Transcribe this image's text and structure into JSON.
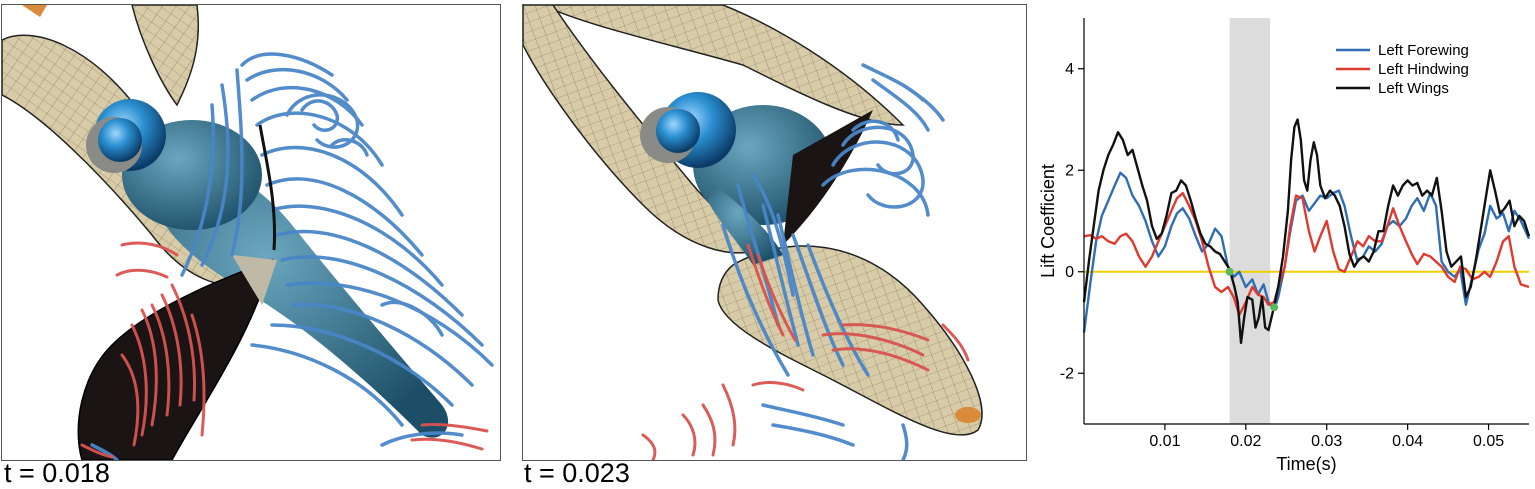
{
  "panels": [
    {
      "label": "t = 0.018"
    },
    {
      "label": "t = 0.023"
    }
  ],
  "colors": {
    "vortex_blue": "#4a86c8",
    "vortex_red": "#d9534f",
    "wing_fill": "#d8cca8",
    "wing_dark": "#1a1414",
    "body": "#2e6f8e",
    "eye": "#2a8fd0",
    "highlight_band": "#dcdcdc",
    "zero_line": "#f0d000"
  },
  "chart_data": {
    "type": "line",
    "title": "",
    "xlabel": "Time(s)",
    "ylabel": "Lift Coefficient",
    "xlim": [
      0.0,
      0.055
    ],
    "ylim": [
      -3,
      5
    ],
    "xticks": [
      0.01,
      0.02,
      0.03,
      0.04,
      0.05
    ],
    "xtick_labels": [
      "0.01",
      "0.02",
      "0.03",
      "0.04",
      "0.05"
    ],
    "yticks": [
      -2,
      0,
      2,
      4
    ],
    "ytick_labels": [
      "-2",
      "0",
      "2",
      "4"
    ],
    "highlight_x": [
      0.018,
      0.023
    ],
    "reference_line_y": 0,
    "markers": [
      [
        0.018,
        0.0
      ],
      [
        0.0235,
        -0.7
      ]
    ],
    "legend_position": "top-right",
    "grid": false,
    "series": [
      {
        "name": "Left Forewing",
        "color": "#2f6db5",
        "points": [
          [
            0.0,
            -1.2
          ],
          [
            0.0008,
            -0.2
          ],
          [
            0.0015,
            0.6
          ],
          [
            0.0022,
            1.1
          ],
          [
            0.003,
            1.4
          ],
          [
            0.0038,
            1.7
          ],
          [
            0.0045,
            1.95
          ],
          [
            0.0052,
            1.85
          ],
          [
            0.006,
            1.5
          ],
          [
            0.0068,
            1.3
          ],
          [
            0.0076,
            1.0
          ],
          [
            0.0084,
            0.6
          ],
          [
            0.0092,
            0.3
          ],
          [
            0.01,
            0.5
          ],
          [
            0.0108,
            0.9
          ],
          [
            0.0115,
            1.15
          ],
          [
            0.0122,
            1.25
          ],
          [
            0.013,
            1.05
          ],
          [
            0.0138,
            0.7
          ],
          [
            0.0146,
            0.4
          ],
          [
            0.0154,
            0.55
          ],
          [
            0.0162,
            0.85
          ],
          [
            0.017,
            0.7
          ],
          [
            0.0178,
            0.1
          ],
          [
            0.0185,
            -0.1
          ],
          [
            0.0192,
            0.0
          ],
          [
            0.02,
            -0.3
          ],
          [
            0.0208,
            -0.15
          ],
          [
            0.0215,
            -0.45
          ],
          [
            0.0222,
            -0.25
          ],
          [
            0.0228,
            -0.6
          ],
          [
            0.0235,
            -0.75
          ],
          [
            0.024,
            -0.5
          ],
          [
            0.0248,
            0.1
          ],
          [
            0.0255,
            0.8
          ],
          [
            0.0262,
            1.4
          ],
          [
            0.027,
            1.5
          ],
          [
            0.0278,
            1.2
          ],
          [
            0.0285,
            1.35
          ],
          [
            0.0292,
            1.5
          ],
          [
            0.03,
            1.45
          ],
          [
            0.0308,
            1.55
          ],
          [
            0.0315,
            1.6
          ],
          [
            0.0322,
            1.3
          ],
          [
            0.033,
            0.7
          ],
          [
            0.0338,
            0.2
          ],
          [
            0.0345,
            0.3
          ],
          [
            0.0352,
            0.5
          ],
          [
            0.036,
            0.4
          ],
          [
            0.0368,
            0.55
          ],
          [
            0.0375,
            0.9
          ],
          [
            0.0382,
            1.0
          ],
          [
            0.039,
            0.9
          ],
          [
            0.0398,
            1.05
          ],
          [
            0.0405,
            1.3
          ],
          [
            0.0412,
            1.45
          ],
          [
            0.042,
            1.2
          ],
          [
            0.0428,
            1.55
          ],
          [
            0.0435,
            1.3
          ],
          [
            0.0442,
            0.2
          ],
          [
            0.045,
            0.0
          ],
          [
            0.0458,
            -0.1
          ],
          [
            0.0465,
            0.05
          ],
          [
            0.0472,
            -0.65
          ],
          [
            0.048,
            -0.1
          ],
          [
            0.0488,
            0.45
          ],
          [
            0.0495,
            0.75
          ],
          [
            0.0502,
            1.3
          ],
          [
            0.051,
            1.05
          ],
          [
            0.0518,
            1.15
          ],
          [
            0.0525,
            0.8
          ],
          [
            0.0532,
            1.2
          ],
          [
            0.054,
            1.0
          ],
          [
            0.055,
            0.65
          ]
        ]
      },
      {
        "name": "Left Hindwing",
        "color": "#e03a2f",
        "points": [
          [
            0.0,
            0.7
          ],
          [
            0.0008,
            0.72
          ],
          [
            0.0015,
            0.65
          ],
          [
            0.0022,
            0.7
          ],
          [
            0.003,
            0.6
          ],
          [
            0.0038,
            0.55
          ],
          [
            0.0045,
            0.7
          ],
          [
            0.0052,
            0.75
          ],
          [
            0.006,
            0.6
          ],
          [
            0.0068,
            0.3
          ],
          [
            0.0076,
            0.1
          ],
          [
            0.0084,
            0.3
          ],
          [
            0.0092,
            0.6
          ],
          [
            0.01,
            0.9
          ],
          [
            0.0108,
            1.2
          ],
          [
            0.0115,
            1.45
          ],
          [
            0.0122,
            1.55
          ],
          [
            0.013,
            1.3
          ],
          [
            0.0138,
            1.0
          ],
          [
            0.0146,
            0.6
          ],
          [
            0.0154,
            0.1
          ],
          [
            0.0162,
            -0.3
          ],
          [
            0.017,
            -0.4
          ],
          [
            0.0178,
            -0.3
          ],
          [
            0.0185,
            -0.5
          ],
          [
            0.0192,
            -0.85
          ],
          [
            0.02,
            -0.6
          ],
          [
            0.0208,
            -0.3
          ],
          [
            0.0215,
            -0.45
          ],
          [
            0.0222,
            -0.5
          ],
          [
            0.0228,
            -0.65
          ],
          [
            0.0235,
            -0.6
          ],
          [
            0.024,
            -0.3
          ],
          [
            0.0248,
            0.1
          ],
          [
            0.0255,
            0.9
          ],
          [
            0.0262,
            1.5
          ],
          [
            0.027,
            1.45
          ],
          [
            0.0278,
            0.8
          ],
          [
            0.0285,
            0.4
          ],
          [
            0.0292,
            0.7
          ],
          [
            0.03,
            1.0
          ],
          [
            0.0308,
            0.4
          ],
          [
            0.0315,
            0.05
          ],
          [
            0.0322,
            0.0
          ],
          [
            0.033,
            0.3
          ],
          [
            0.0338,
            0.6
          ],
          [
            0.0345,
            0.5
          ],
          [
            0.0352,
            0.7
          ],
          [
            0.036,
            0.6
          ],
          [
            0.0368,
            0.6
          ],
          [
            0.0375,
            0.9
          ],
          [
            0.0382,
            1.25
          ],
          [
            0.039,
            0.9
          ],
          [
            0.0398,
            0.6
          ],
          [
            0.0405,
            0.35
          ],
          [
            0.0412,
            0.15
          ],
          [
            0.042,
            0.35
          ],
          [
            0.0428,
            0.3
          ],
          [
            0.0435,
            0.2
          ],
          [
            0.0442,
            0.1
          ],
          [
            0.045,
            -0.1
          ],
          [
            0.0458,
            -0.2
          ],
          [
            0.0465,
            0.1
          ],
          [
            0.0472,
            0.05
          ],
          [
            0.048,
            -0.15
          ],
          [
            0.0488,
            -0.1
          ],
          [
            0.0495,
            0.0
          ],
          [
            0.0502,
            -0.1
          ],
          [
            0.051,
            0.2
          ],
          [
            0.0518,
            0.6
          ],
          [
            0.0525,
            0.7
          ],
          [
            0.0532,
            0.1
          ],
          [
            0.054,
            -0.25
          ],
          [
            0.055,
            -0.3
          ]
        ]
      },
      {
        "name": "Left Wings",
        "color": "#111111",
        "points": [
          [
            0.0,
            -0.6
          ],
          [
            0.0006,
            0.2
          ],
          [
            0.0012,
            0.9
          ],
          [
            0.0018,
            1.6
          ],
          [
            0.0024,
            2.0
          ],
          [
            0.003,
            2.3
          ],
          [
            0.0036,
            2.5
          ],
          [
            0.0042,
            2.75
          ],
          [
            0.0048,
            2.6
          ],
          [
            0.0054,
            2.3
          ],
          [
            0.006,
            2.4
          ],
          [
            0.0066,
            2.05
          ],
          [
            0.0072,
            1.7
          ],
          [
            0.0078,
            1.4
          ],
          [
            0.0084,
            0.9
          ],
          [
            0.009,
            0.65
          ],
          [
            0.0096,
            0.75
          ],
          [
            0.0102,
            1.1
          ],
          [
            0.0108,
            1.55
          ],
          [
            0.0114,
            1.6
          ],
          [
            0.012,
            1.8
          ],
          [
            0.0126,
            1.7
          ],
          [
            0.0132,
            1.4
          ],
          [
            0.0138,
            1.05
          ],
          [
            0.0144,
            0.75
          ],
          [
            0.015,
            0.55
          ],
          [
            0.0156,
            0.5
          ],
          [
            0.0162,
            0.4
          ],
          [
            0.0168,
            0.35
          ],
          [
            0.0174,
            0.2
          ],
          [
            0.018,
            0.05
          ],
          [
            0.0186,
            -0.3
          ],
          [
            0.019,
            -0.6
          ],
          [
            0.0194,
            -1.4
          ],
          [
            0.0198,
            -0.9
          ],
          [
            0.0202,
            -0.5
          ],
          [
            0.0208,
            -0.55
          ],
          [
            0.0212,
            -1.1
          ],
          [
            0.0216,
            -0.9
          ],
          [
            0.022,
            -0.5
          ],
          [
            0.0224,
            -1.1
          ],
          [
            0.0228,
            -1.15
          ],
          [
            0.0234,
            -0.75
          ],
          [
            0.024,
            -0.3
          ],
          [
            0.0246,
            0.3
          ],
          [
            0.0252,
            1.2
          ],
          [
            0.0256,
            2.2
          ],
          [
            0.026,
            2.85
          ],
          [
            0.0264,
            3.0
          ],
          [
            0.0268,
            2.6
          ],
          [
            0.0272,
            1.8
          ],
          [
            0.0276,
            1.6
          ],
          [
            0.028,
            2.2
          ],
          [
            0.0284,
            2.55
          ],
          [
            0.0288,
            2.3
          ],
          [
            0.0292,
            1.7
          ],
          [
            0.0298,
            1.45
          ],
          [
            0.0304,
            1.6
          ],
          [
            0.031,
            1.5
          ],
          [
            0.0316,
            1.3
          ],
          [
            0.0322,
            0.9
          ],
          [
            0.0328,
            0.35
          ],
          [
            0.0334,
            0.1
          ],
          [
            0.034,
            0.25
          ],
          [
            0.0346,
            0.3
          ],
          [
            0.0352,
            0.2
          ],
          [
            0.0358,
            0.4
          ],
          [
            0.0364,
            0.8
          ],
          [
            0.037,
            0.8
          ],
          [
            0.0376,
            1.3
          ],
          [
            0.0382,
            1.7
          ],
          [
            0.0388,
            1.5
          ],
          [
            0.0394,
            1.7
          ],
          [
            0.04,
            1.8
          ],
          [
            0.0406,
            1.7
          ],
          [
            0.0412,
            1.75
          ],
          [
            0.0418,
            1.5
          ],
          [
            0.0424,
            1.6
          ],
          [
            0.043,
            1.5
          ],
          [
            0.0436,
            1.85
          ],
          [
            0.0442,
            1.2
          ],
          [
            0.0448,
            0.4
          ],
          [
            0.0454,
            0.1
          ],
          [
            0.046,
            0.2
          ],
          [
            0.0466,
            0.3
          ],
          [
            0.0472,
            -0.5
          ],
          [
            0.0478,
            -0.3
          ],
          [
            0.0484,
            0.2
          ],
          [
            0.049,
            0.8
          ],
          [
            0.0496,
            1.4
          ],
          [
            0.0502,
            2.0
          ],
          [
            0.0508,
            1.6
          ],
          [
            0.0514,
            1.15
          ],
          [
            0.052,
            1.25
          ],
          [
            0.0526,
            1.4
          ],
          [
            0.0532,
            0.9
          ],
          [
            0.0538,
            1.1
          ],
          [
            0.0544,
            1.0
          ],
          [
            0.055,
            0.7
          ]
        ]
      }
    ]
  }
}
